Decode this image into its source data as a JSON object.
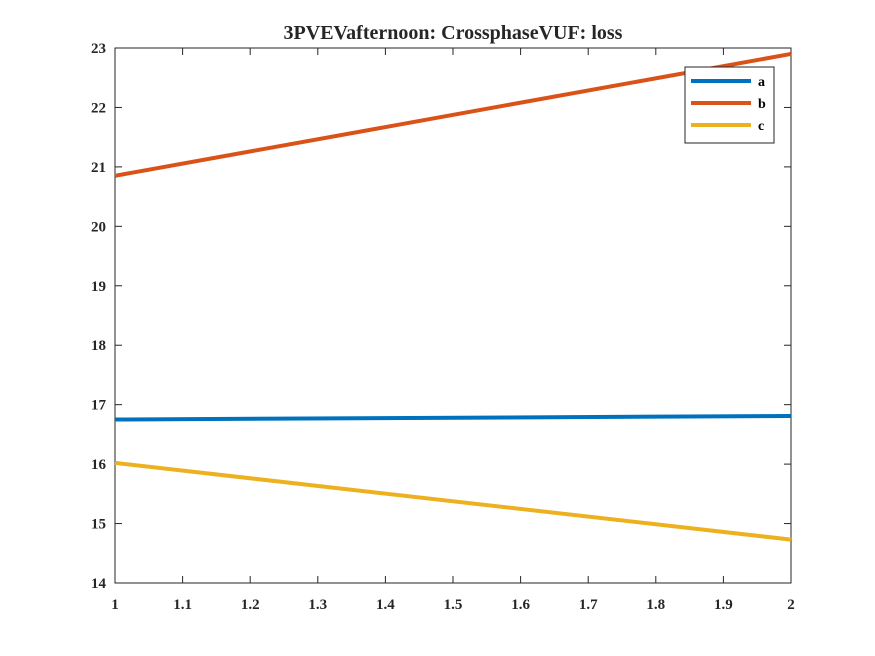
{
  "chart_data": {
    "type": "line",
    "title": "3PVEVafternoon: CrossphaseVUF: loss",
    "xlabel": "",
    "ylabel": "",
    "xlim": [
      1,
      2
    ],
    "ylim": [
      14,
      23
    ],
    "x_ticks": [
      "1",
      "1.1",
      "1.2",
      "1.3",
      "1.4",
      "1.5",
      "1.6",
      "1.7",
      "1.8",
      "1.9",
      "2"
    ],
    "y_ticks": [
      "14",
      "15",
      "16",
      "17",
      "18",
      "19",
      "20",
      "21",
      "22",
      "23"
    ],
    "x": [
      1,
      2
    ],
    "series": [
      {
        "name": "a",
        "color": "#0072BD",
        "values": [
          16.75,
          16.81
        ]
      },
      {
        "name": "b",
        "color": "#D95319",
        "values": [
          20.85,
          22.9
        ]
      },
      {
        "name": "c",
        "color": "#EDB120",
        "values": [
          16.02,
          14.73
        ]
      }
    ],
    "legend": {
      "position": "top-right",
      "box": true
    },
    "grid": false
  }
}
